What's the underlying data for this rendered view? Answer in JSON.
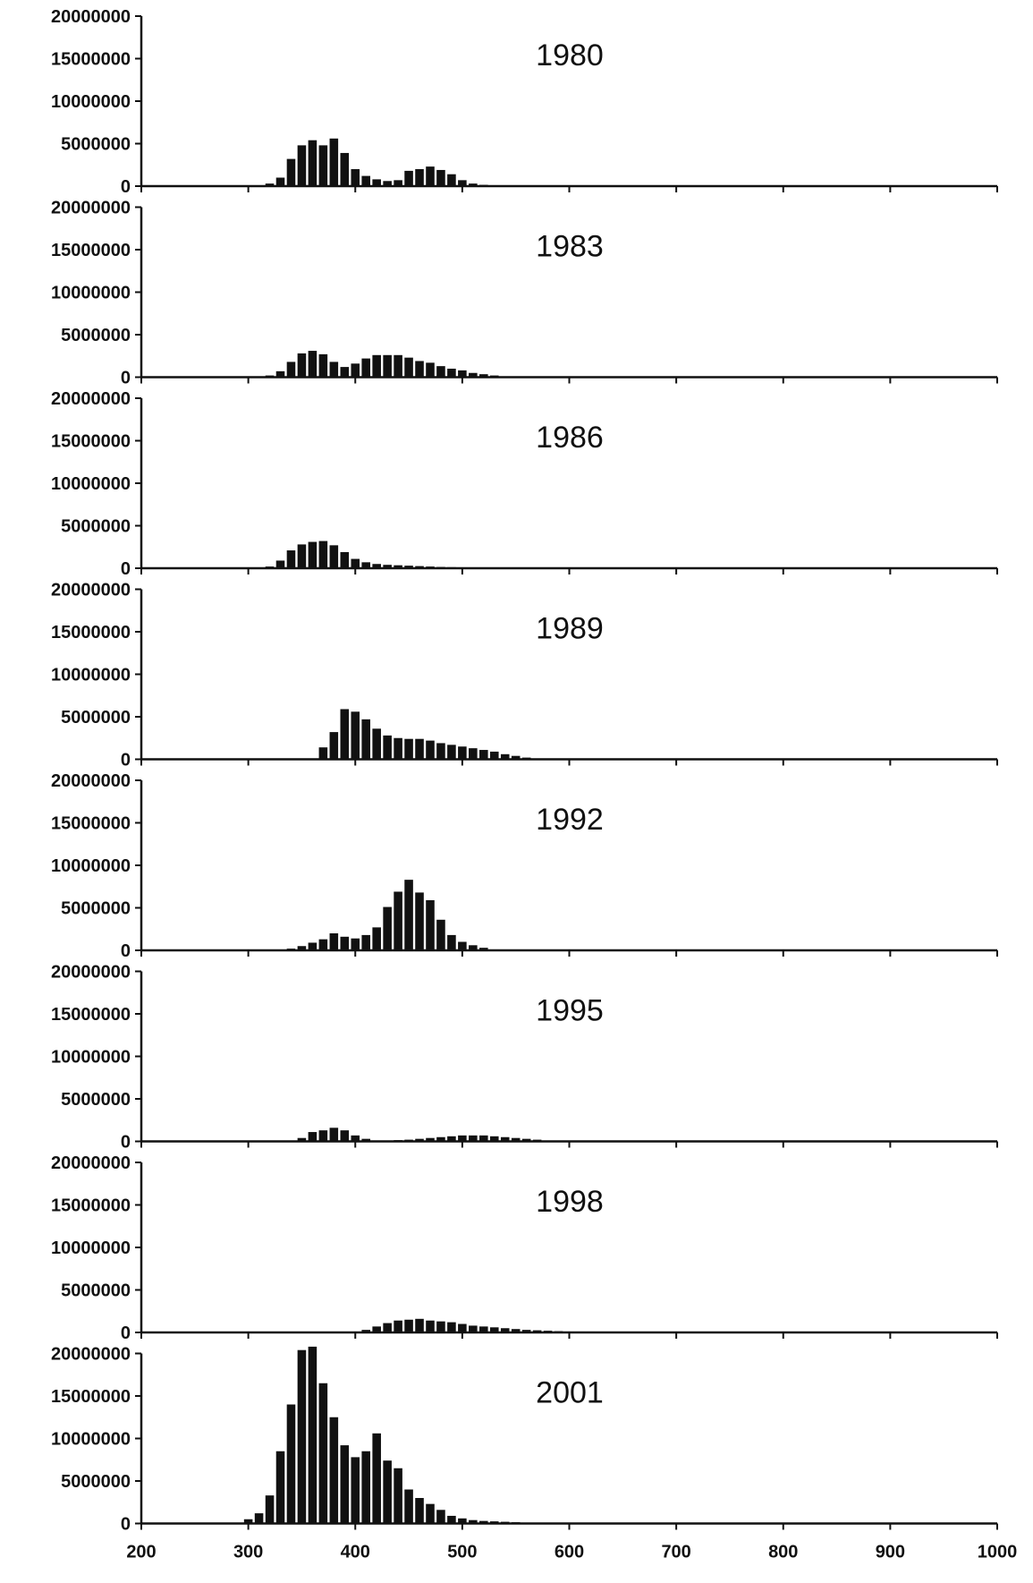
{
  "chart_data": [
    {
      "type": "bar",
      "title": "1980",
      "xlabel": "",
      "ylabel": "",
      "xlim": [
        200,
        1000
      ],
      "ylim": [
        0,
        20000000
      ],
      "xticks": [
        200,
        300,
        400,
        500,
        600,
        700,
        800,
        900,
        1000
      ],
      "yticks": [
        "0",
        "5000000",
        "10000000",
        "15000000",
        "20000000"
      ],
      "x": [
        320,
        330,
        340,
        350,
        360,
        370,
        380,
        390,
        400,
        410,
        420,
        430,
        440,
        450,
        460,
        470,
        480,
        490,
        500,
        510,
        520,
        530
      ],
      "values": [
        300000,
        1000000,
        3200000,
        4800000,
        5400000,
        4800000,
        5600000,
        3900000,
        2000000,
        1200000,
        800000,
        600000,
        700000,
        1800000,
        2000000,
        2300000,
        1900000,
        1400000,
        700000,
        300000,
        150000,
        50000
      ]
    },
    {
      "type": "bar",
      "title": "1983",
      "xlabel": "",
      "ylabel": "",
      "xlim": [
        200,
        1000
      ],
      "ylim": [
        0,
        20000000
      ],
      "xticks": [
        200,
        300,
        400,
        500,
        600,
        700,
        800,
        900,
        1000
      ],
      "yticks": [
        "0",
        "5000000",
        "10000000",
        "15000000",
        "20000000"
      ],
      "x": [
        320,
        330,
        340,
        350,
        360,
        370,
        380,
        390,
        400,
        410,
        420,
        430,
        440,
        450,
        460,
        470,
        480,
        490,
        500,
        510,
        520,
        530,
        540,
        550
      ],
      "values": [
        200000,
        700000,
        1800000,
        2800000,
        3100000,
        2700000,
        1800000,
        1200000,
        1600000,
        2200000,
        2600000,
        2600000,
        2600000,
        2300000,
        1900000,
        1700000,
        1300000,
        1000000,
        800000,
        500000,
        350000,
        200000,
        100000,
        50000
      ]
    },
    {
      "type": "bar",
      "title": "1986",
      "xlabel": "",
      "ylabel": "",
      "xlim": [
        200,
        1000
      ],
      "ylim": [
        0,
        20000000
      ],
      "xticks": [
        200,
        300,
        400,
        500,
        600,
        700,
        800,
        900,
        1000
      ],
      "yticks": [
        "0",
        "5000000",
        "10000000",
        "15000000",
        "20000000"
      ],
      "x": [
        320,
        330,
        340,
        350,
        360,
        370,
        380,
        390,
        400,
        410,
        420,
        430,
        440,
        450,
        460,
        470,
        480,
        490,
        500,
        510,
        520,
        530,
        540,
        550
      ],
      "values": [
        200000,
        900000,
        2100000,
        2800000,
        3100000,
        3200000,
        2700000,
        1900000,
        1100000,
        700000,
        500000,
        400000,
        350000,
        300000,
        250000,
        200000,
        150000,
        120000,
        100000,
        80000,
        60000,
        50000,
        40000,
        30000
      ]
    },
    {
      "type": "bar",
      "title": "1989",
      "xlabel": "",
      "ylabel": "",
      "xlim": [
        200,
        1000
      ],
      "ylim": [
        0,
        20000000
      ],
      "xticks": [
        200,
        300,
        400,
        500,
        600,
        700,
        800,
        900,
        1000
      ],
      "yticks": [
        "0",
        "5000000",
        "10000000",
        "15000000",
        "20000000"
      ],
      "x": [
        370,
        380,
        390,
        400,
        410,
        420,
        430,
        440,
        450,
        460,
        470,
        480,
        490,
        500,
        510,
        520,
        530,
        540,
        550,
        560
      ],
      "values": [
        1400000,
        3200000,
        5900000,
        5600000,
        4700000,
        3600000,
        2800000,
        2500000,
        2400000,
        2400000,
        2200000,
        1900000,
        1700000,
        1500000,
        1300000,
        1100000,
        900000,
        600000,
        400000,
        200000
      ]
    },
    {
      "type": "bar",
      "title": "1992",
      "xlabel": "",
      "ylabel": "",
      "xlim": [
        200,
        1000
      ],
      "ylim": [
        0,
        20000000
      ],
      "xticks": [
        200,
        300,
        400,
        500,
        600,
        700,
        800,
        900,
        1000
      ],
      "yticks": [
        "0",
        "5000000",
        "10000000",
        "15000000",
        "20000000"
      ],
      "x": [
        340,
        350,
        360,
        370,
        380,
        390,
        400,
        410,
        420,
        430,
        440,
        450,
        460,
        470,
        480,
        490,
        500,
        510,
        520,
        530
      ],
      "values": [
        200000,
        500000,
        900000,
        1300000,
        2000000,
        1600000,
        1400000,
        1800000,
        2700000,
        5100000,
        6900000,
        8300000,
        6800000,
        5900000,
        3600000,
        1800000,
        1000000,
        600000,
        300000,
        100000
      ]
    },
    {
      "type": "bar",
      "title": "1995",
      "xlabel": "",
      "ylabel": "",
      "xlim": [
        200,
        1000
      ],
      "ylim": [
        0,
        20000000
      ],
      "xticks": [
        200,
        300,
        400,
        500,
        600,
        700,
        800,
        900,
        1000
      ],
      "yticks": [
        "0",
        "5000000",
        "10000000",
        "15000000",
        "20000000"
      ],
      "x": [
        350,
        360,
        370,
        380,
        390,
        400,
        410,
        420,
        430,
        440,
        450,
        460,
        470,
        480,
        490,
        500,
        510,
        520,
        530,
        540,
        550,
        560,
        570,
        580
      ],
      "values": [
        400000,
        1100000,
        1300000,
        1600000,
        1300000,
        700000,
        300000,
        100000,
        100000,
        150000,
        200000,
        300000,
        400000,
        500000,
        600000,
        700000,
        700000,
        700000,
        600000,
        500000,
        400000,
        300000,
        200000,
        100000
      ]
    },
    {
      "type": "bar",
      "title": "1998",
      "xlabel": "",
      "ylabel": "",
      "xlim": [
        200,
        1000
      ],
      "ylim": [
        0,
        20000000
      ],
      "xticks": [
        200,
        300,
        400,
        500,
        600,
        700,
        800,
        900,
        1000
      ],
      "yticks": [
        "0",
        "5000000",
        "10000000",
        "15000000",
        "20000000"
      ],
      "x": [
        410,
        420,
        430,
        440,
        450,
        460,
        470,
        480,
        490,
        500,
        510,
        520,
        530,
        540,
        550,
        560,
        570,
        580,
        590,
        600,
        610,
        620
      ],
      "values": [
        300000,
        700000,
        1100000,
        1400000,
        1500000,
        1600000,
        1400000,
        1300000,
        1200000,
        1000000,
        800000,
        700000,
        600000,
        500000,
        400000,
        300000,
        250000,
        200000,
        150000,
        100000,
        80000,
        50000
      ]
    },
    {
      "type": "bar",
      "title": "2001",
      "xlabel": "",
      "ylabel": "",
      "xlim": [
        200,
        1000
      ],
      "ylim": [
        0,
        20000000
      ],
      "xticks": [
        200,
        300,
        400,
        500,
        600,
        700,
        800,
        900,
        1000
      ],
      "yticks": [
        "0",
        "5000000",
        "10000000",
        "15000000",
        "20000000"
      ],
      "x": [
        300,
        310,
        320,
        330,
        340,
        350,
        360,
        370,
        380,
        390,
        400,
        410,
        420,
        430,
        440,
        450,
        460,
        470,
        480,
        490,
        500,
        510,
        520,
        530,
        540,
        550,
        560,
        570,
        580
      ],
      "values": [
        500000,
        1200000,
        3300000,
        8500000,
        14000000,
        20400000,
        20800000,
        16500000,
        12500000,
        9200000,
        7800000,
        8500000,
        10600000,
        7400000,
        6500000,
        4000000,
        3000000,
        2300000,
        1600000,
        900000,
        600000,
        400000,
        300000,
        250000,
        200000,
        150000,
        100000,
        80000,
        50000
      ]
    }
  ]
}
